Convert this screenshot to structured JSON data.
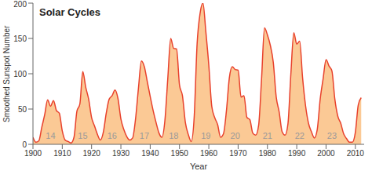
{
  "chart_data": {
    "type": "area",
    "title": "Solar Cycles",
    "x_label": "Year",
    "y_label": "Smoothed Sunspot Number",
    "color": "#e8412c",
    "fill": "#fbc995",
    "x": [
      1900,
      1901,
      1902,
      1903,
      1904,
      1905,
      1906,
      1907,
      1908,
      1909,
      1910,
      1911,
      1912,
      1913,
      1914,
      1915,
      1916,
      1917,
      1918,
      1919,
      1920,
      1921,
      1922,
      1923,
      1924,
      1925,
      1926,
      1927,
      1928,
      1929,
      1930,
      1931,
      1932,
      1933,
      1934,
      1935,
      1936,
      1937,
      1938,
      1939,
      1940,
      1941,
      1942,
      1943,
      1944,
      1945,
      1946,
      1947,
      1948,
      1949,
      1950,
      1951,
      1952,
      1953,
      1954,
      1955,
      1956,
      1957,
      1958,
      1959,
      1960,
      1961,
      1962,
      1963,
      1964,
      1965,
      1966,
      1967,
      1968,
      1969,
      1970,
      1971,
      1972,
      1973,
      1974,
      1975,
      1976,
      1977,
      1978,
      1979,
      1980,
      1981,
      1982,
      1983,
      1984,
      1985,
      1986,
      1987,
      1988,
      1989,
      1990,
      1991,
      1992,
      1993,
      1994,
      1995,
      1996,
      1997,
      1998,
      1999,
      2000,
      2001,
      2002,
      2003,
      2004,
      2005,
      2006,
      2007,
      2008,
      2009,
      2010,
      2011,
      2012
    ],
    "values": [
      10,
      3,
      5,
      24,
      42,
      63,
      54,
      62,
      48,
      44,
      19,
      6,
      4,
      2,
      10,
      47,
      57,
      103,
      81,
      64,
      38,
      26,
      14,
      6,
      17,
      44,
      64,
      69,
      77,
      65,
      36,
      21,
      11,
      6,
      9,
      36,
      80,
      118,
      110,
      89,
      68,
      48,
      31,
      16,
      10,
      33,
      93,
      150,
      136,
      135,
      84,
      69,
      31,
      14,
      4,
      38,
      142,
      185,
      200,
      159,
      112,
      54,
      38,
      28,
      10,
      15,
      47,
      94,
      110,
      106,
      105,
      67,
      69,
      38,
      35,
      16,
      13,
      27,
      93,
      165,
      155,
      140,
      116,
      67,
      46,
      18,
      13,
      29,
      100,
      158,
      142,
      146,
      94,
      55,
      30,
      18,
      9,
      21,
      64,
      93,
      120,
      111,
      104,
      64,
      40,
      30,
      15,
      8,
      3,
      3,
      17,
      56,
      66
    ],
    "xlim": [
      1900,
      2013
    ],
    "xticks": [
      1900,
      1910,
      1920,
      1930,
      1940,
      1950,
      1960,
      1970,
      1980,
      1990,
      2000,
      2010
    ],
    "ylim": [
      0,
      200
    ],
    "yticks": [
      0,
      50,
      100,
      150,
      200
    ],
    "grid": false,
    "annotations": [
      {
        "text": "14",
        "x": 1906,
        "y": 12
      },
      {
        "text": "15",
        "x": 1917,
        "y": 12
      },
      {
        "text": "16",
        "x": 1927,
        "y": 12
      },
      {
        "text": "17",
        "x": 1938,
        "y": 12
      },
      {
        "text": "18",
        "x": 1948,
        "y": 12
      },
      {
        "text": "19",
        "x": 1959,
        "y": 12
      },
      {
        "text": "20",
        "x": 1969,
        "y": 12
      },
      {
        "text": "21",
        "x": 1980,
        "y": 12
      },
      {
        "text": "22",
        "x": 1991,
        "y": 12
      },
      {
        "text": "23",
        "x": 2002,
        "y": 12
      }
    ]
  }
}
